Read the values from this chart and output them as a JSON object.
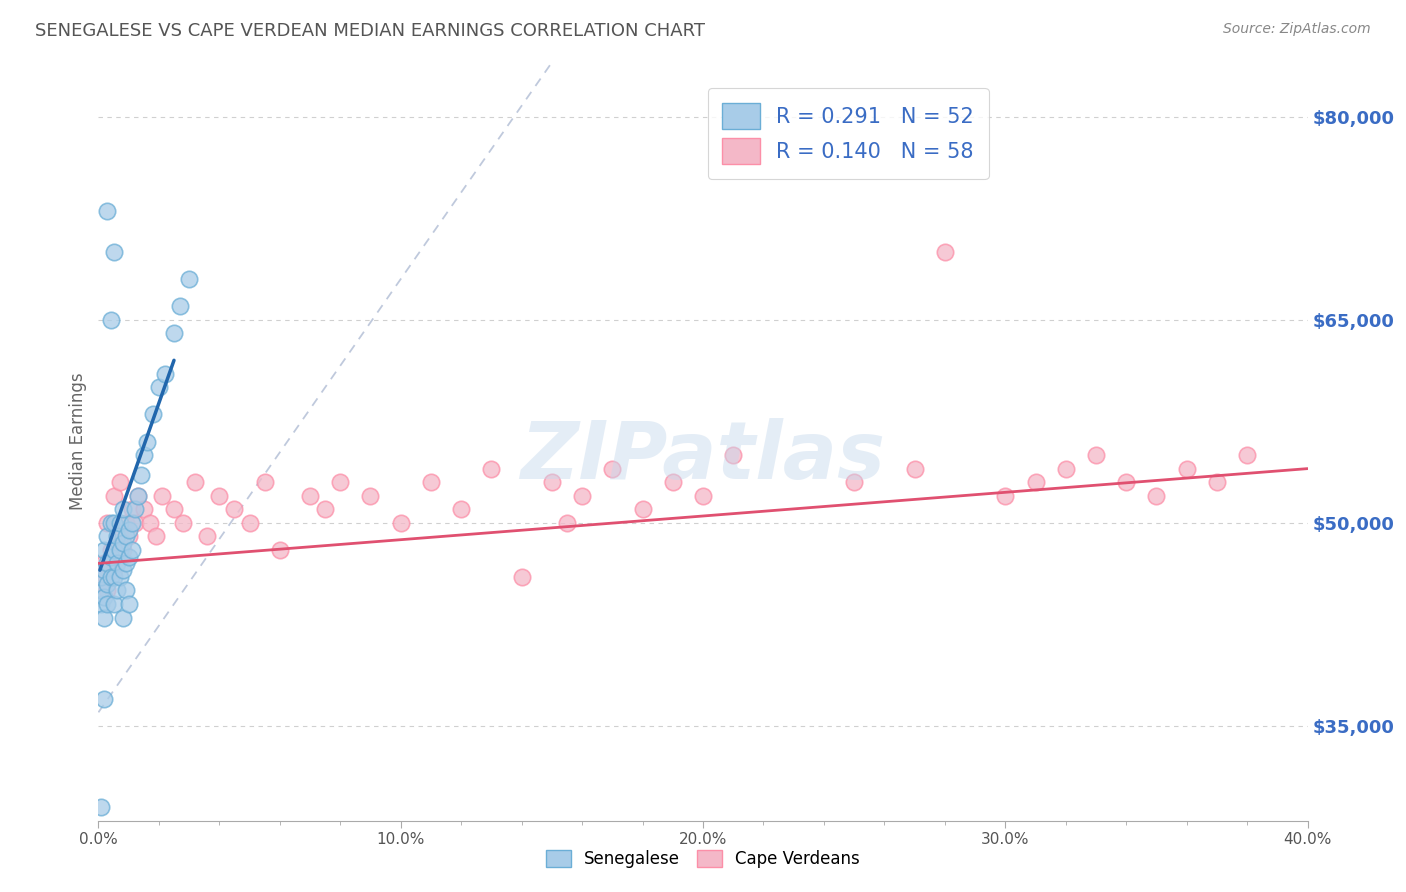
{
  "title": "SENEGALESE VS CAPE VERDEAN MEDIAN EARNINGS CORRELATION CHART",
  "source_text": "Source: ZipAtlas.com",
  "ylabel": "Median Earnings",
  "xlim": [
    0.0,
    0.4
  ],
  "ylim": [
    28000,
    84000
  ],
  "xtick_labels": [
    "0.0%",
    "",
    "",
    "",
    "",
    "10.0%",
    "",
    "",
    "",
    "",
    "20.0%",
    "",
    "",
    "",
    "",
    "30.0%",
    "",
    "",
    "",
    "",
    "40.0%"
  ],
  "xtick_values": [
    0.0,
    0.02,
    0.04,
    0.06,
    0.08,
    0.1,
    0.12,
    0.14,
    0.16,
    0.18,
    0.2,
    0.22,
    0.24,
    0.26,
    0.28,
    0.3,
    0.32,
    0.34,
    0.36,
    0.38,
    0.4
  ],
  "ytick_right_labels": [
    "$35,000",
    "$50,000",
    "$65,000",
    "$80,000"
  ],
  "ytick_right_values": [
    35000,
    50000,
    65000,
    80000
  ],
  "blue_R": "0.291",
  "blue_N": "52",
  "pink_R": "0.140",
  "pink_N": "58",
  "blue_color": "#a8cce8",
  "pink_color": "#f4b8c8",
  "blue_edge_color": "#6baed6",
  "pink_edge_color": "#fc8fa8",
  "blue_line_color": "#2166ac",
  "pink_line_color": "#e05070",
  "watermark": "ZIPatlas",
  "watermark_color": "#c5d8ec",
  "background_color": "#ffffff",
  "grid_color": "#d0d0d0",
  "title_color": "#555555",
  "ref_line_color": "#b0bcd4",
  "senegalese_x": [
    0.001,
    0.001,
    0.001,
    0.002,
    0.002,
    0.002,
    0.002,
    0.003,
    0.003,
    0.003,
    0.003,
    0.004,
    0.004,
    0.004,
    0.005,
    0.005,
    0.005,
    0.005,
    0.006,
    0.006,
    0.006,
    0.007,
    0.007,
    0.007,
    0.008,
    0.008,
    0.008,
    0.009,
    0.009,
    0.01,
    0.01,
    0.011,
    0.011,
    0.012,
    0.013,
    0.014,
    0.015,
    0.016,
    0.018,
    0.02,
    0.022,
    0.025,
    0.027,
    0.03,
    0.008,
    0.009,
    0.01,
    0.004,
    0.005,
    0.003,
    0.002,
    0.001
  ],
  "senegalese_y": [
    44000,
    45000,
    46000,
    43000,
    44500,
    46500,
    48000,
    44000,
    45500,
    47000,
    49000,
    46000,
    47500,
    50000,
    44000,
    46000,
    48000,
    50000,
    45000,
    47000,
    49000,
    46000,
    48000,
    50000,
    46500,
    48500,
    51000,
    47000,
    49000,
    47500,
    49500,
    48000,
    50000,
    51000,
    52000,
    53500,
    55000,
    56000,
    58000,
    60000,
    61000,
    64000,
    66000,
    68000,
    43000,
    45000,
    44000,
    65000,
    70000,
    73000,
    37000,
    29000
  ],
  "capeverdean_x": [
    0.001,
    0.002,
    0.003,
    0.003,
    0.004,
    0.005,
    0.005,
    0.006,
    0.007,
    0.007,
    0.008,
    0.009,
    0.01,
    0.011,
    0.012,
    0.013,
    0.015,
    0.017,
    0.019,
    0.021,
    0.025,
    0.028,
    0.032,
    0.036,
    0.04,
    0.045,
    0.05,
    0.055,
    0.06,
    0.07,
    0.075,
    0.08,
    0.09,
    0.1,
    0.11,
    0.12,
    0.13,
    0.14,
    0.15,
    0.155,
    0.16,
    0.17,
    0.18,
    0.19,
    0.2,
    0.21,
    0.25,
    0.27,
    0.28,
    0.3,
    0.31,
    0.32,
    0.33,
    0.34,
    0.35,
    0.36,
    0.37,
    0.38
  ],
  "capeverdean_y": [
    46000,
    47000,
    45000,
    50000,
    48000,
    46500,
    52000,
    47000,
    49000,
    53000,
    48000,
    50000,
    49000,
    51000,
    50000,
    52000,
    51000,
    50000,
    49000,
    52000,
    51000,
    50000,
    53000,
    49000,
    52000,
    51000,
    50000,
    53000,
    48000,
    52000,
    51000,
    53000,
    52000,
    50000,
    53000,
    51000,
    54000,
    46000,
    53000,
    50000,
    52000,
    54000,
    51000,
    53000,
    52000,
    55000,
    53000,
    54000,
    70000,
    52000,
    53000,
    54000,
    55000,
    53000,
    52000,
    54000,
    53000,
    55000
  ],
  "blue_trend_x": [
    0.0005,
    0.025
  ],
  "blue_trend_y": [
    46500,
    62000
  ],
  "pink_trend_x": [
    0.0,
    0.4
  ],
  "pink_trend_y": [
    47000,
    54000
  ],
  "ref_line_x": [
    0.0,
    0.15
  ],
  "ref_line_y": [
    36000,
    84000
  ]
}
